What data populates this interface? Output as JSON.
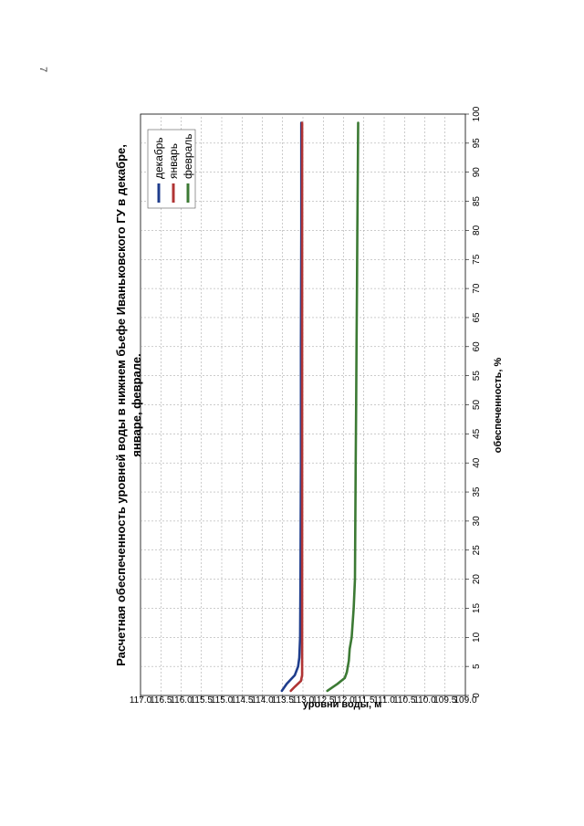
{
  "page": {
    "number": "7"
  },
  "chart_data": {
    "type": "line",
    "title": [
      "Расчетная обеспеченность уровней воды в нижнем бьефе Иваньковского ГУ в декабре,",
      "январе, феврале."
    ],
    "xlabel": "обеспеченность, %",
    "ylabel": "уровни воды, м",
    "xlim": [
      0,
      100
    ],
    "ylim": [
      109.0,
      117.0
    ],
    "xticks": [
      "0",
      "5",
      "10",
      "15",
      "20",
      "25",
      "30",
      "35",
      "40",
      "45",
      "50",
      "55",
      "60",
      "65",
      "70",
      "75",
      "80",
      "85",
      "90",
      "95",
      "100"
    ],
    "yticks": [
      "109.0",
      "109.5",
      "110.0",
      "110.5",
      "111.0",
      "111.5",
      "112.0",
      "112.5",
      "113.0",
      "113.5",
      "114.0",
      "114.5",
      "115.0",
      "115.5",
      "116.0",
      "116.5",
      "117.0"
    ],
    "grid": true,
    "legend_position": "top-left",
    "series": [
      {
        "name": "декабрь",
        "color": "#1f3d8c",
        "x": [
          0.8,
          2,
          3.5,
          5,
          6.5,
          10,
          20,
          40,
          60,
          80,
          98.5
        ],
        "y": [
          113.52,
          113.4,
          113.2,
          113.12,
          113.09,
          113.07,
          113.06,
          113.05,
          113.05,
          113.04,
          113.04
        ]
      },
      {
        "name": "январь",
        "color": "#b03434",
        "x": [
          0.8,
          1.5,
          2.5,
          3.5,
          5,
          10,
          30,
          50,
          70,
          98.5
        ],
        "y": [
          113.3,
          113.2,
          113.05,
          113.02,
          113.02,
          113.02,
          113.02,
          113.02,
          113.02,
          113.02
        ]
      },
      {
        "name": "февраль",
        "color": "#3c7a34",
        "x": [
          0.8,
          2,
          3,
          4,
          6,
          8,
          10,
          15,
          20,
          30,
          40,
          50,
          60,
          70,
          80,
          90,
          98.5
        ],
        "y": [
          112.4,
          112.15,
          111.97,
          111.92,
          111.87,
          111.85,
          111.8,
          111.75,
          111.72,
          111.71,
          111.7,
          111.69,
          111.68,
          111.67,
          111.66,
          111.65,
          111.64
        ]
      }
    ]
  }
}
